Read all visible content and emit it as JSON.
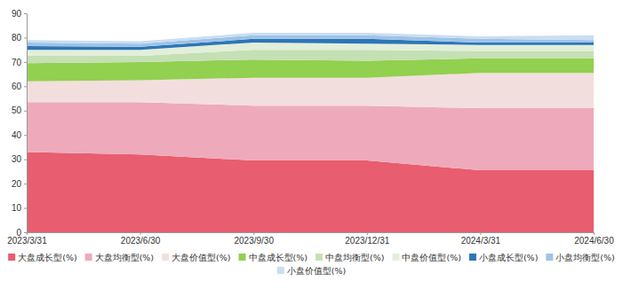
{
  "chart_data": {
    "type": "area",
    "stacked": true,
    "grid": false,
    "legend": "bottom",
    "categories": [
      "2023/3/31",
      "2023/6/30",
      "2023/9/30",
      "2023/12/31",
      "2024/3/31",
      "2024/6/30"
    ],
    "ylim": [
      0,
      90
    ],
    "yticks": [
      0,
      10,
      20,
      30,
      40,
      50,
      60,
      70,
      80,
      90
    ],
    "series": [
      {
        "name": "大盘成长型(%)",
        "color": "#e85d6f",
        "values": [
          33,
          32,
          29.5,
          29.5,
          25.5,
          25.5
        ]
      },
      {
        "name": "大盘均衡型(%)",
        "color": "#eeaabb",
        "values": [
          20.5,
          21.5,
          22.5,
          22.5,
          25.5,
          25.5
        ]
      },
      {
        "name": "大盘价值型(%)",
        "color": "#f3dede",
        "values": [
          8.5,
          9,
          11.5,
          11.5,
          14.5,
          14.5
        ]
      },
      {
        "name": "中盘成长型(%)",
        "color": "#92d050",
        "values": [
          7.5,
          7.5,
          7.5,
          7,
          6,
          6
        ]
      },
      {
        "name": "中盘均衡型(%)",
        "color": "#c5e0b4",
        "values": [
          3,
          2.5,
          4,
          4.5,
          3,
          3
        ]
      },
      {
        "name": "中盘价值型(%)",
        "color": "#e2efda",
        "values": [
          2.5,
          2.5,
          3,
          2.5,
          2.5,
          2.5
        ]
      },
      {
        "name": "小盘成长型(%)",
        "color": "#2e75b6",
        "values": [
          1.5,
          1.2,
          1.5,
          2,
          1,
          1
        ]
      },
      {
        "name": "小盘均衡型(%)",
        "color": "#9dc3e6",
        "values": [
          1.5,
          1.3,
          1.5,
          1.5,
          1.5,
          1
        ]
      },
      {
        "name": "小盘价值型(%)",
        "color": "#c9ddf3",
        "values": [
          1,
          1,
          1,
          1,
          1,
          2
        ]
      }
    ]
  }
}
